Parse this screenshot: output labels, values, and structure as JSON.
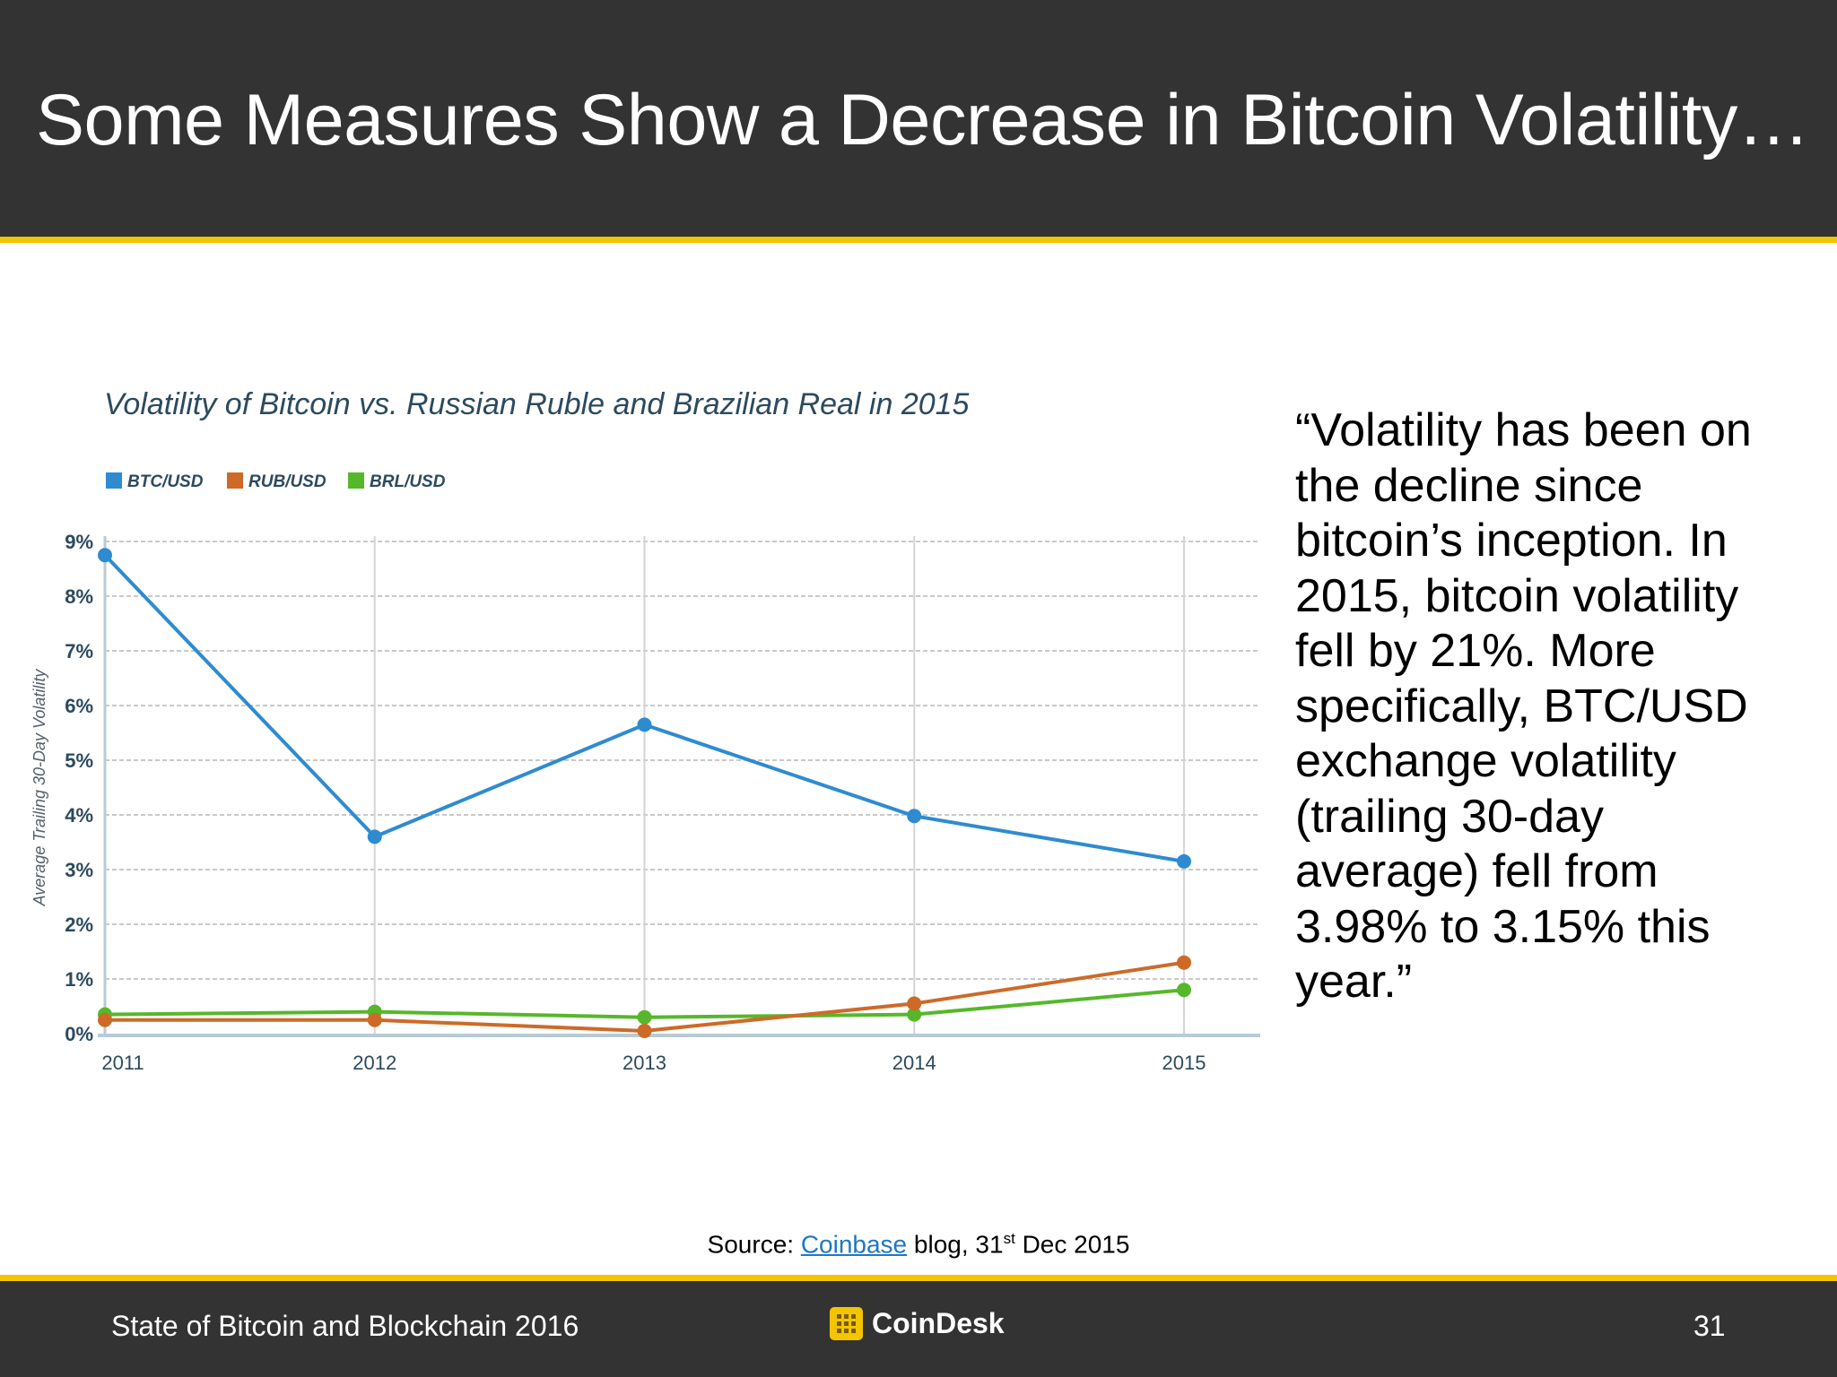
{
  "slide": {
    "title": "Some Measures Show a Decrease in Bitcoin Volatility…",
    "quote": "“Volatility has been on the decline since bitcoin’s inception. In 2015, bitcoin volatility fell by 21%. More specifically, BTC/USD exchange volatility (trailing 30-day average) fell from 3.98% to 3.15% this year.”",
    "source": {
      "prefix": "Source: ",
      "link_text": "Coinbase",
      "middle": " blog, 31",
      "superscript": "st",
      "suffix": " Dec 2015"
    }
  },
  "footer": {
    "text": "State of Bitcoin and Blockchain 2016",
    "brand": "CoinDesk",
    "page_number": "31"
  },
  "colors": {
    "header_bg": "#333333",
    "accent_line": "#f2c500",
    "link": "#1f77c4"
  },
  "chart_data": {
    "type": "line",
    "title": "Volatility of Bitcoin vs. Russian Ruble and Brazilian Real in 2015",
    "ylabel": "Average Trailing 30-Day Volatility",
    "xlabel": "",
    "categories": [
      "2011",
      "2012",
      "2013",
      "2014",
      "2015"
    ],
    "ylim": [
      0,
      9
    ],
    "yticks": [
      "0%",
      "1%",
      "2%",
      "3%",
      "4%",
      "5%",
      "6%",
      "7%",
      "8%",
      "9%"
    ],
    "grid": true,
    "legend_position": "top-left",
    "series": [
      {
        "name": "BTC/USD",
        "color": "#2e8bd0",
        "values": [
          8.75,
          3.6,
          5.65,
          3.98,
          3.15
        ]
      },
      {
        "name": "RUB/USD",
        "color": "#cd6a28",
        "values": [
          0.25,
          0.25,
          0.05,
          0.55,
          1.3
        ]
      },
      {
        "name": "BRL/USD",
        "color": "#55b82a",
        "values": [
          0.35,
          0.4,
          0.3,
          0.35,
          0.8
        ]
      }
    ]
  }
}
